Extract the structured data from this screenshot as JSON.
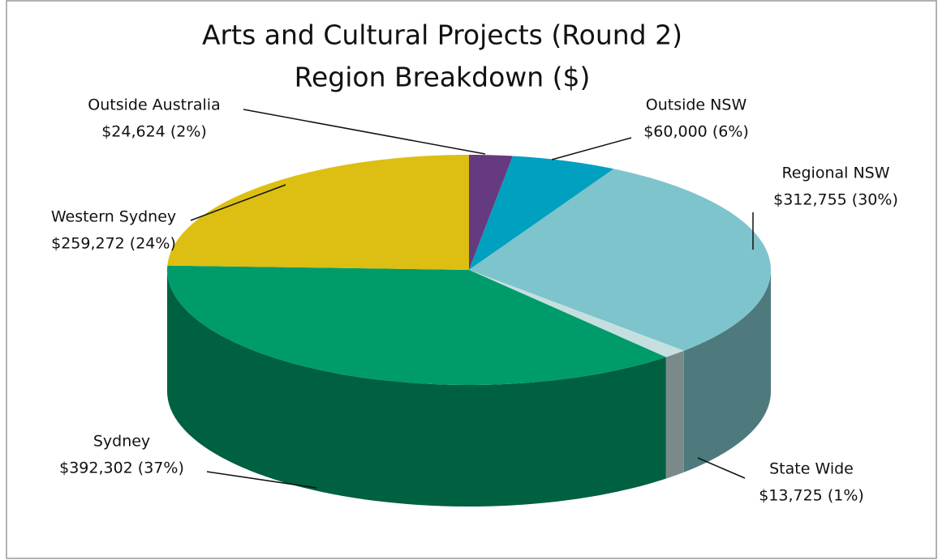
{
  "chart_data": {
    "type": "pie",
    "title": [
      "Arts and Cultural Projects (Round 2)",
      "Region Breakdown ($)"
    ],
    "categories": [
      "Outside Australia",
      "Outside NSW",
      "Regional NSW",
      "State Wide",
      "Sydney",
      "Western Sydney"
    ],
    "values": [
      24624,
      60000,
      312755,
      13725,
      392302,
      259272
    ],
    "value_labels": [
      "$24,624 (2%)",
      "$60,000 (6%)",
      "$312,755 (30%)",
      "$13,725 (1%)",
      "$392,302 (37%)",
      "$259,272 (24%)"
    ],
    "colors": [
      "#663a7f",
      "#00a0c0",
      "#7ec4cc",
      "#c5dfe0",
      "#009b6a",
      "#dcbf12"
    ]
  }
}
